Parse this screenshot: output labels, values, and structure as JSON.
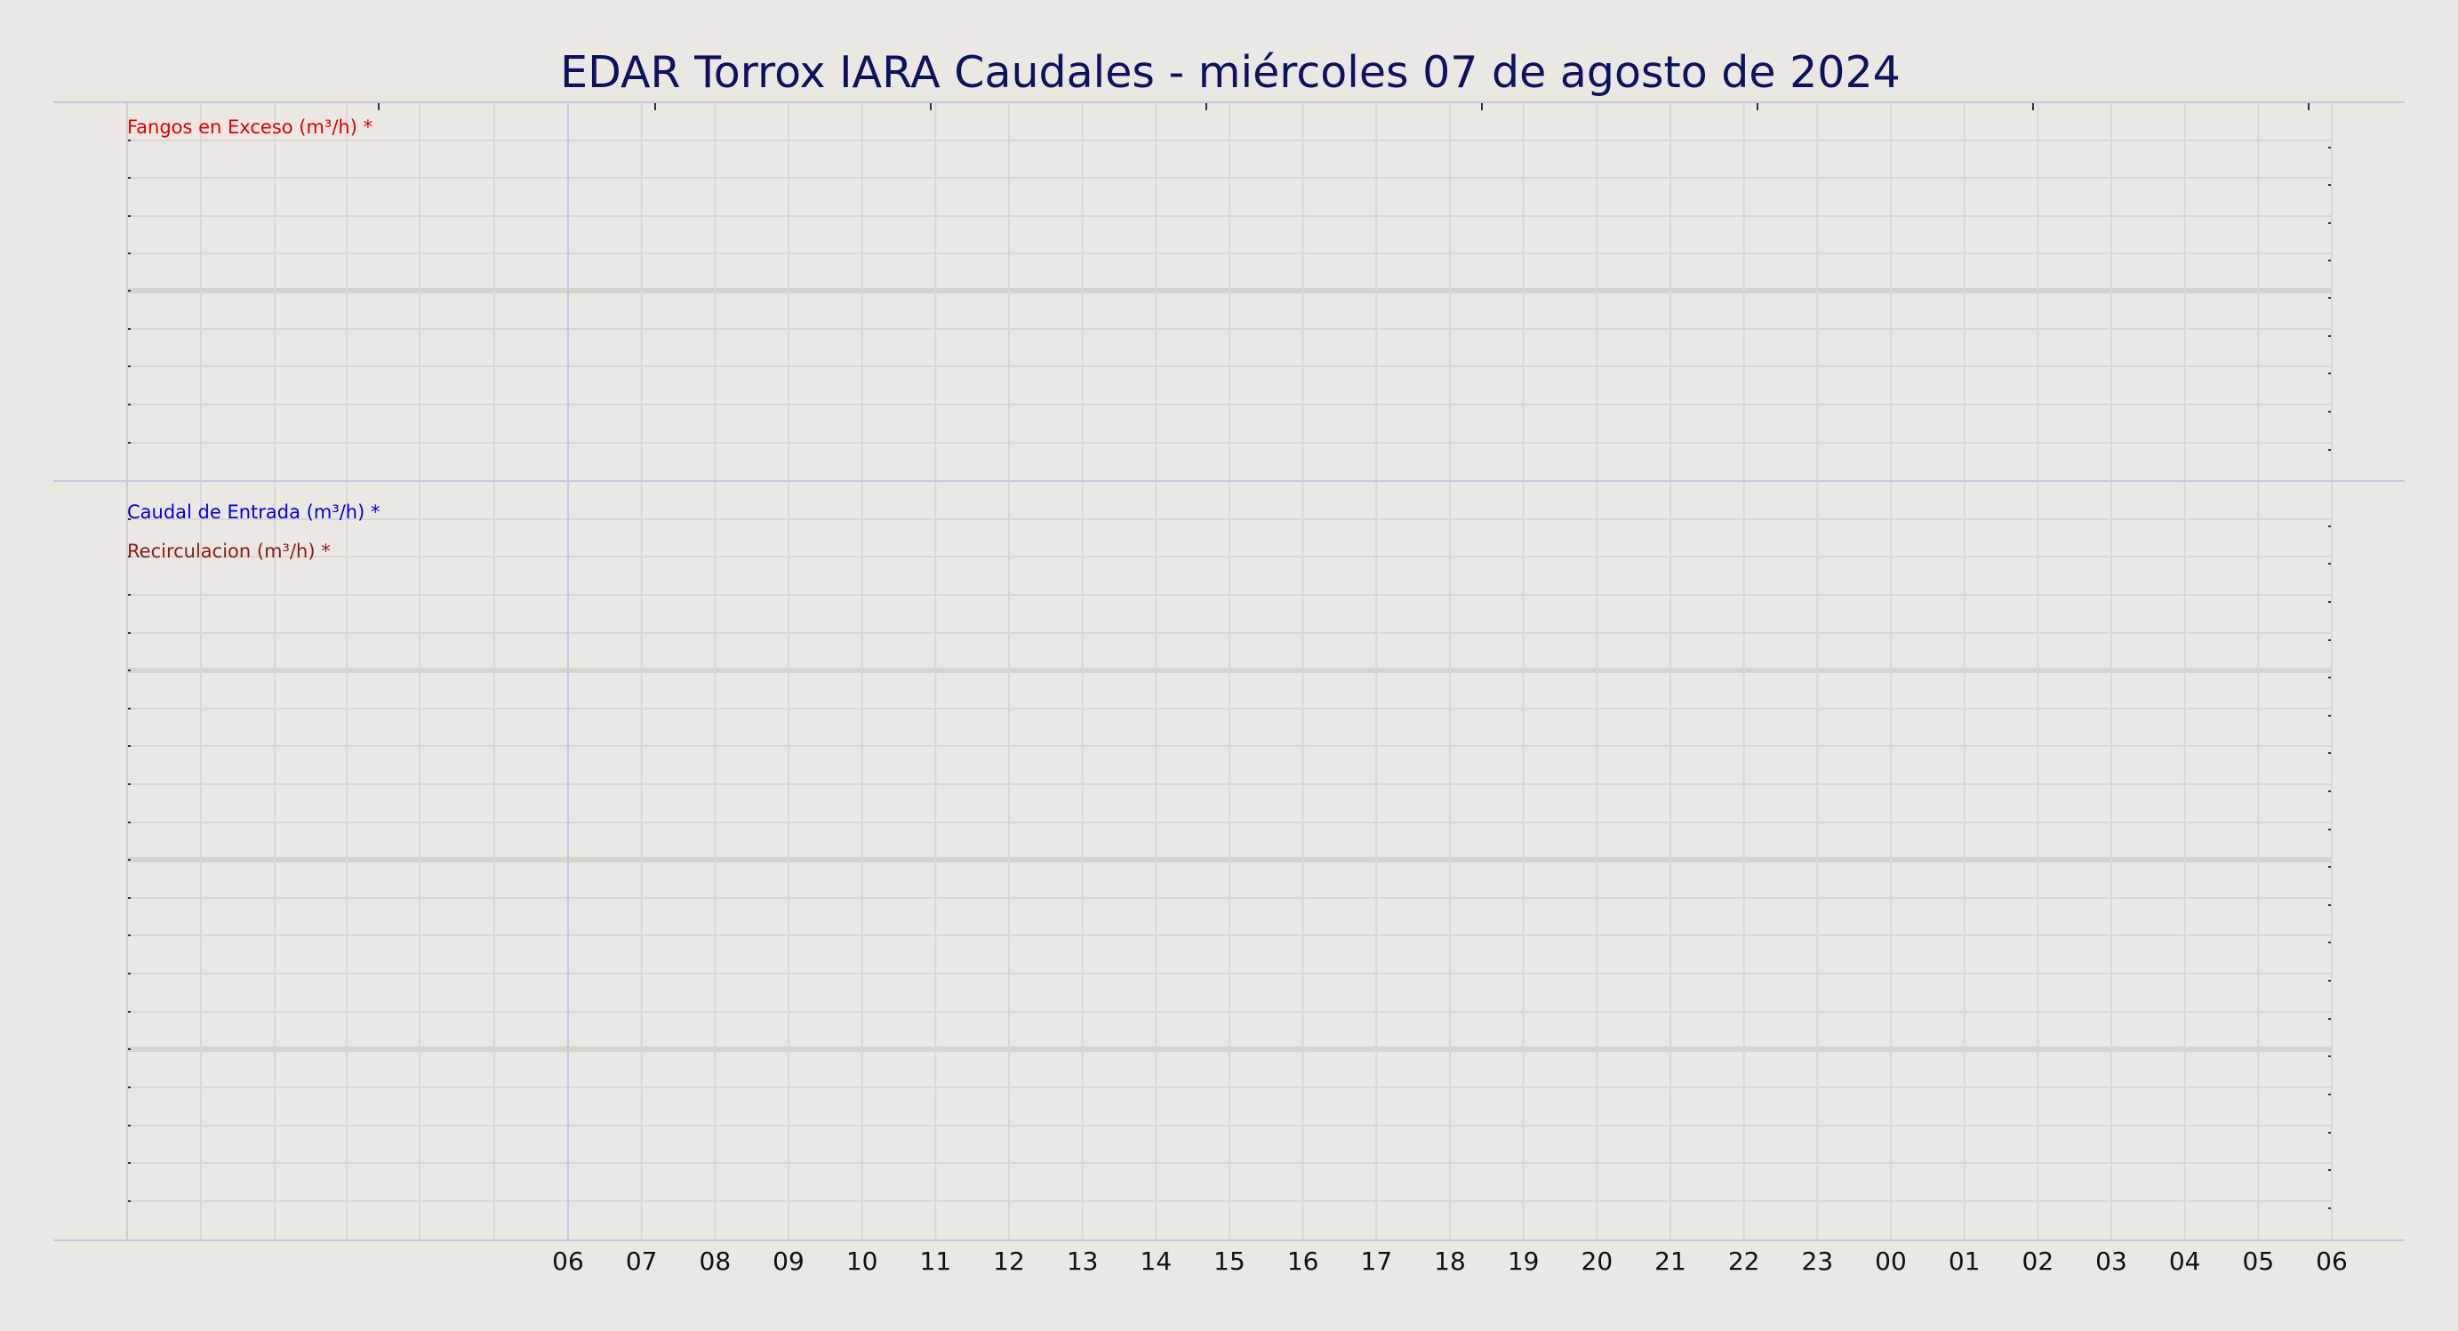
{
  "chart_data": {
    "type": "line",
    "title": "EDAR Torrox IARA Caudales   -   miércoles 07 de agosto de 2024",
    "x_tick_labels": [
      "06",
      "07",
      "08",
      "09",
      "10",
      "11",
      "12",
      "13",
      "14",
      "15",
      "16",
      "17",
      "18",
      "19",
      "20",
      "21",
      "22",
      "23",
      "00",
      "01",
      "02",
      "03",
      "04",
      "05",
      "06"
    ],
    "grid": true,
    "panels": [
      {
        "name": "upper-panel",
        "series": [
          {
            "name": "Fangos en Exceso (m³/h) *",
            "color": "#e00000",
            "values": []
          }
        ]
      },
      {
        "name": "lower-panel",
        "series": [
          {
            "name": "Caudal de Entrada (m³/h) *",
            "color": "#0000dd",
            "values": []
          },
          {
            "name": "Recirculacion (m³/h) *",
            "color": "#8b1a1a",
            "values": []
          }
        ]
      }
    ]
  },
  "colors": {
    "background": "#ebe7e2",
    "title": "#0d1160",
    "grid": "#dcd7d2",
    "grid_major": "#d9d3cd",
    "frame": "#c6c9e4"
  }
}
